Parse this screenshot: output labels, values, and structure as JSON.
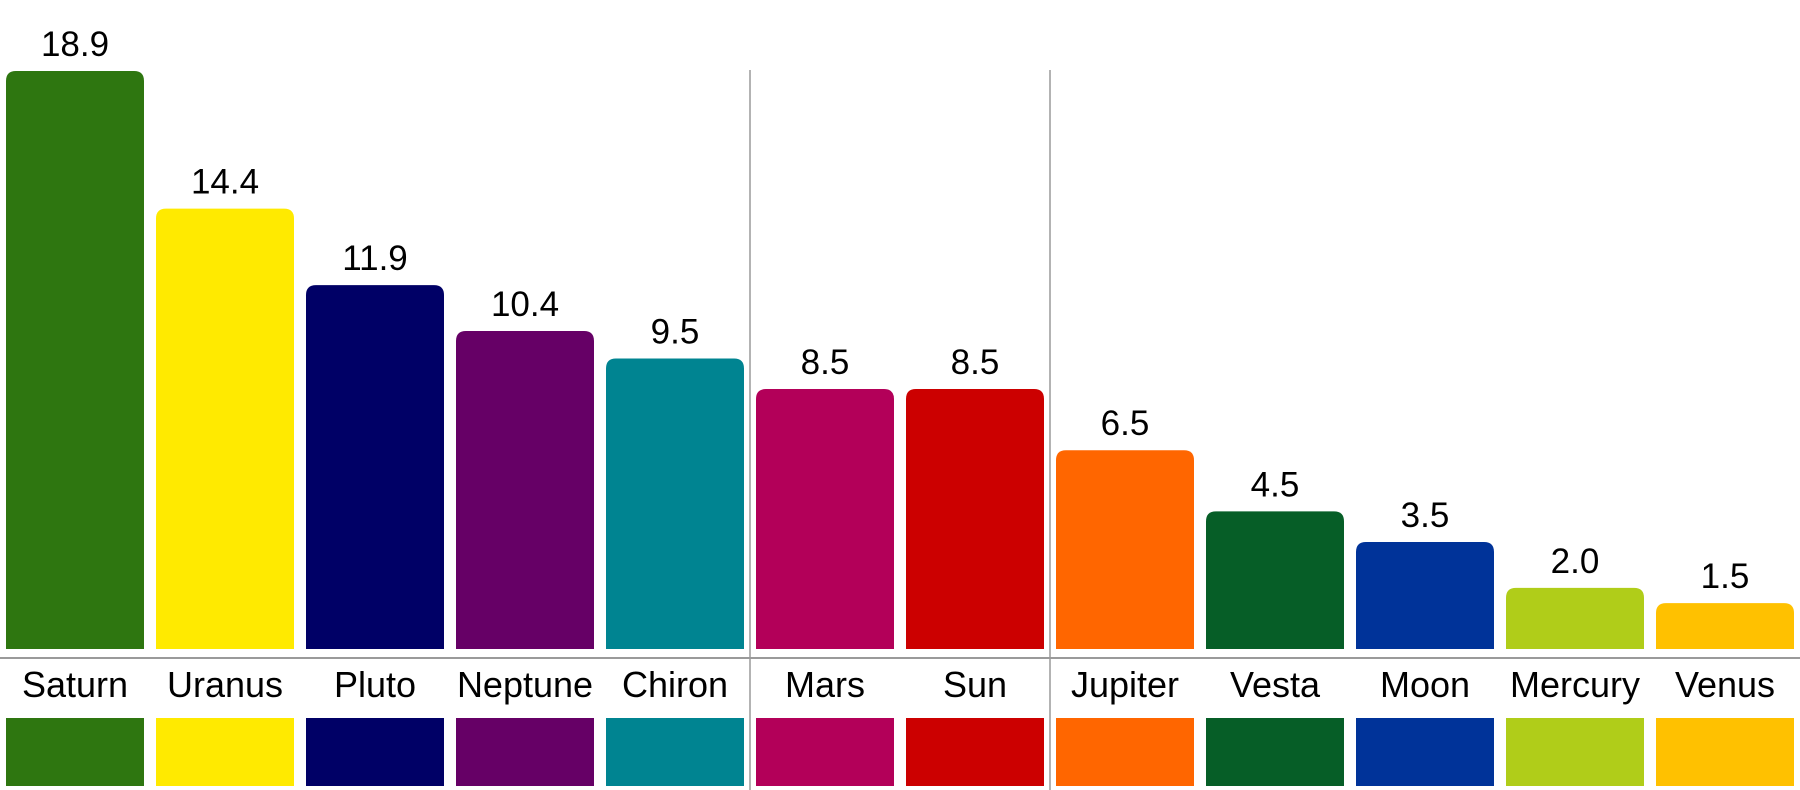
{
  "chart_data": {
    "type": "bar",
    "categories": [
      "Saturn",
      "Uranus",
      "Pluto",
      "Neptune",
      "Chiron",
      "Mars",
      "Sun",
      "Jupiter",
      "Vesta",
      "Moon",
      "Mercury",
      "Venus"
    ],
    "values": [
      18.9,
      14.4,
      11.9,
      10.4,
      9.5,
      8.5,
      8.5,
      6.5,
      4.5,
      3.5,
      2.0,
      1.5
    ],
    "value_labels": [
      "18.9",
      "14.4",
      "11.9",
      "10.4",
      "9.5",
      "8.5",
      "8.5",
      "6.5",
      "4.5",
      "3.5",
      "2.0",
      "1.5"
    ],
    "colors": [
      "#2e7610",
      "#ffea00",
      "#000066",
      "#660066",
      "#008491",
      "#b30059",
      "#cc0000",
      "#ff6600",
      "#065e27",
      "#003399",
      "#b0cd19",
      "#ffc100"
    ],
    "group_breaks_after": [
      "Chiron",
      "Sun"
    ],
    "title": "",
    "xlabel": "",
    "ylabel": "",
    "ylim": [
      0,
      18.9
    ],
    "grid": false,
    "legend": "color swatches below category labels"
  }
}
